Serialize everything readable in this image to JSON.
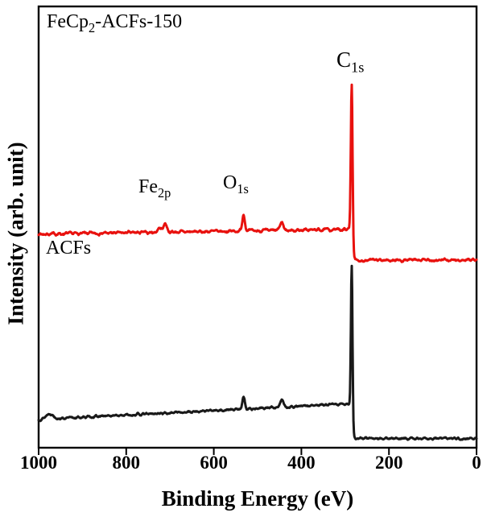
{
  "figure": {
    "title_inline": {
      "pre": "FeCp",
      "sub": "2",
      "post": "-ACFs-150"
    },
    "annotations": {
      "c1s": {
        "base": "C",
        "sub": "1s"
      },
      "o1s": {
        "base": "O",
        "sub": "1s"
      },
      "fe2p": {
        "base": "Fe",
        "sub": "2p"
      },
      "acfs": "ACFs"
    }
  },
  "chart_data": {
    "type": "line",
    "title": "FeCp2-ACFs-150",
    "xlabel": "Binding Energy (eV)",
    "ylabel": "Intensity (arb. unit)",
    "grid": false,
    "legend": "none (series labeled by on-plot annotations)",
    "x_axis": {
      "range": [
        1000,
        0
      ],
      "reversed": true,
      "ticks": [
        1000,
        800,
        600,
        400,
        200,
        0
      ],
      "tick_labels": [
        "1000",
        "800",
        "600",
        "400",
        "200",
        "0"
      ]
    },
    "y_axis": {
      "range": [
        0,
        1
      ],
      "ticks": [],
      "unit": "arb. unit"
    },
    "peak_annotations": [
      {
        "label": "C1s",
        "binding_energy_eV": 285
      },
      {
        "label": "O1s",
        "binding_energy_eV": 532
      },
      {
        "label": "Fe2p",
        "binding_energy_eV": 711
      }
    ],
    "series": [
      {
        "name": "ACFs",
        "color": "#191919",
        "stroke_width": 3,
        "seed": 13,
        "noise": 0.0045,
        "baseline": {
          "left": 0.064,
          "at_peak": 0.1,
          "tail": 0.021,
          "step_center": 283,
          "step_width": 1.2
        },
        "peaks": [
          {
            "name": "C1s",
            "center": 285,
            "height": 0.325,
            "sigma": 1.8
          },
          {
            "name": "O1s",
            "center": 532,
            "height": 0.028,
            "sigma": 3.0
          },
          {
            "name": "satellite",
            "center": 445,
            "height": 0.016,
            "sigma": 4.0
          },
          {
            "name": "bump-left",
            "center": 975,
            "height": 0.012,
            "sigma": 8.0
          }
        ]
      },
      {
        "name": "FeCp2-ACFs-150",
        "color": "#e8110e",
        "stroke_width": 3,
        "seed": 7,
        "noise": 0.006,
        "baseline": {
          "left": 0.484,
          "at_peak": 0.495,
          "tail": 0.425,
          "step_center": 283,
          "step_width": 1.2
        },
        "peaks": [
          {
            "name": "C1s",
            "center": 285,
            "height": 0.34,
            "sigma": 2.0
          },
          {
            "name": "O1s",
            "center": 532,
            "height": 0.038,
            "sigma": 3.0
          },
          {
            "name": "satellite",
            "center": 445,
            "height": 0.018,
            "sigma": 4.0
          },
          {
            "name": "Fe2p-3/2",
            "center": 711,
            "height": 0.02,
            "sigma": 4.0
          },
          {
            "name": "Fe2p-1/2",
            "center": 724,
            "height": 0.01,
            "sigma": 4.0
          }
        ]
      }
    ]
  }
}
